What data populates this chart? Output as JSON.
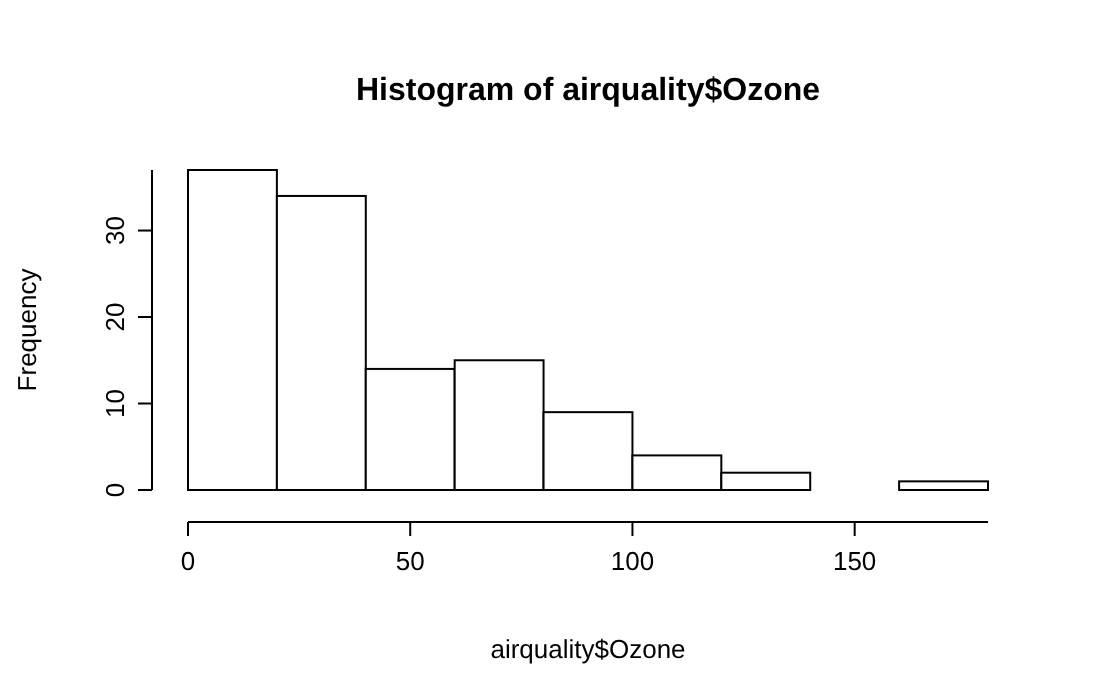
{
  "chart_data": {
    "type": "histogram",
    "title": "Histogram of airquality$Ozone",
    "xlabel": "airquality$Ozone",
    "ylabel": "Frequency",
    "bins": [
      0,
      20,
      40,
      60,
      80,
      100,
      120,
      140,
      160,
      180
    ],
    "values": [
      37,
      34,
      14,
      15,
      9,
      4,
      2,
      0,
      1
    ],
    "color": "#ffffff",
    "xlim": [
      0,
      180
    ],
    "xticks": [
      0,
      50,
      100,
      150
    ],
    "ylim": [
      0,
      37
    ],
    "yticks": [
      0,
      10,
      20,
      30
    ],
    "grid": false
  }
}
